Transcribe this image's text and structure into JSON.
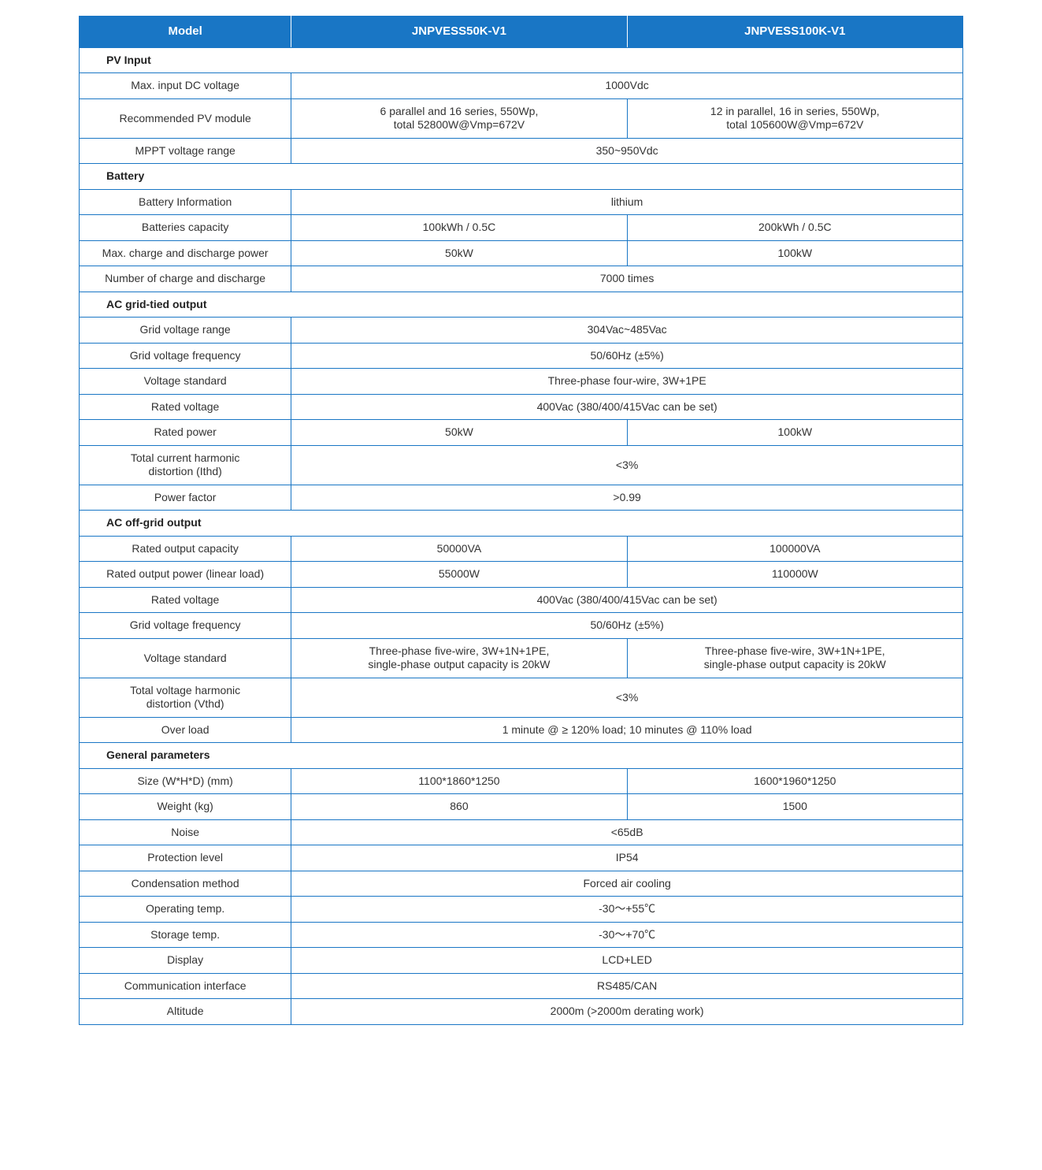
{
  "colors": {
    "header_bg": "#1976c5",
    "header_text": "#ffffff",
    "border": "#1976c5",
    "body_text": "#333333",
    "background": "#ffffff"
  },
  "layout": {
    "col_widths_pct": [
      24,
      38,
      38
    ],
    "font_family": "Segoe UI, Arial, sans-serif",
    "font_size_body": 14,
    "font_size_header": 15
  },
  "header": {
    "c0": "Model",
    "c1": "JNPVESS50K-V1",
    "c2": "JNPVESS100K-V1"
  },
  "sections": {
    "pv": "PV Input",
    "bat": "Battery",
    "grid": "AC grid-tied output",
    "off": "AC off-grid output",
    "gen": "General parameters"
  },
  "rows": {
    "pv_maxdc": {
      "label": "Max. input DC voltage",
      "span": "1000Vdc"
    },
    "pv_module": {
      "label": "Recommended PV module",
      "v1": "6 parallel and 16 series, 550Wp,\ntotal 52800W@Vmp=672V",
      "v2": "12 in parallel, 16 in series, 550Wp,\ntotal 105600W@Vmp=672V"
    },
    "pv_mppt": {
      "label": "MPPT voltage range",
      "span": "350~950Vdc"
    },
    "bat_info": {
      "label": "Battery Information",
      "span": "lithium"
    },
    "bat_cap": {
      "label": "Batteries capacity",
      "v1": "100kWh / 0.5C",
      "v2": "200kWh / 0.5C"
    },
    "bat_pow": {
      "label": "Max. charge and discharge power",
      "v1": "50kW",
      "v2": "100kW"
    },
    "bat_cyc": {
      "label": "Number of charge and discharge",
      "span": "7000 times"
    },
    "grid_vr": {
      "label": "Grid voltage range",
      "span": "304Vac~485Vac"
    },
    "grid_freq": {
      "label": "Grid voltage frequency",
      "span": "50/60Hz (±5%)"
    },
    "grid_std": {
      "label": "Voltage standard",
      "span": "Three-phase four-wire, 3W+1PE"
    },
    "grid_rv": {
      "label": "Rated voltage",
      "span": "400Vac (380/400/415Vac can be set)"
    },
    "grid_rp": {
      "label": "Rated power",
      "v1": "50kW",
      "v2": "100kW"
    },
    "grid_ithd": {
      "label": "Total current harmonic\ndistortion (Ithd)",
      "span": "<3%"
    },
    "grid_pf": {
      "label": "Power factor",
      "span": ">0.99"
    },
    "off_cap": {
      "label": "Rated output capacity",
      "v1": "50000VA",
      "v2": "100000VA"
    },
    "off_pow": {
      "label": "Rated output power (linear load)",
      "v1": "55000W",
      "v2": "110000W"
    },
    "off_rv": {
      "label": "Rated voltage",
      "span": "400Vac (380/400/415Vac can be set)"
    },
    "off_freq": {
      "label": "Grid voltage frequency",
      "span": "50/60Hz (±5%)"
    },
    "off_std": {
      "label": "Voltage standard",
      "v1": "Three-phase five-wire, 3W+1N+1PE,\nsingle-phase output capacity is 20kW",
      "v2": "Three-phase five-wire, 3W+1N+1PE,\nsingle-phase output capacity is 20kW"
    },
    "off_vthd": {
      "label": "Total voltage harmonic\ndistortion (Vthd)",
      "span": "<3%"
    },
    "off_over": {
      "label": "Over load",
      "span": "1 minute @ ≥ 120% load; 10 minutes @ 110% load"
    },
    "gen_size": {
      "label": "Size (W*H*D) (mm)",
      "v1": "1100*1860*1250",
      "v2": "1600*1960*1250"
    },
    "gen_weight": {
      "label": "Weight (kg)",
      "v1": "860",
      "v2": "1500"
    },
    "gen_noise": {
      "label": "Noise",
      "span": "<65dB"
    },
    "gen_ip": {
      "label": "Protection level",
      "span": "IP54"
    },
    "gen_cool": {
      "label": "Condensation method",
      "span": "Forced air cooling"
    },
    "gen_optemp": {
      "label": "Operating temp.",
      "span": "-30～+55℃"
    },
    "gen_sttemp": {
      "label": "Storage temp.",
      "span": "-30～+70℃"
    },
    "gen_disp": {
      "label": "Display",
      "span": "LCD+LED"
    },
    "gen_comm": {
      "label": "Communication interface",
      "span": "RS485/CAN"
    },
    "gen_alt": {
      "label": "Altitude",
      "span": "2000m (>2000m derating work)"
    }
  }
}
